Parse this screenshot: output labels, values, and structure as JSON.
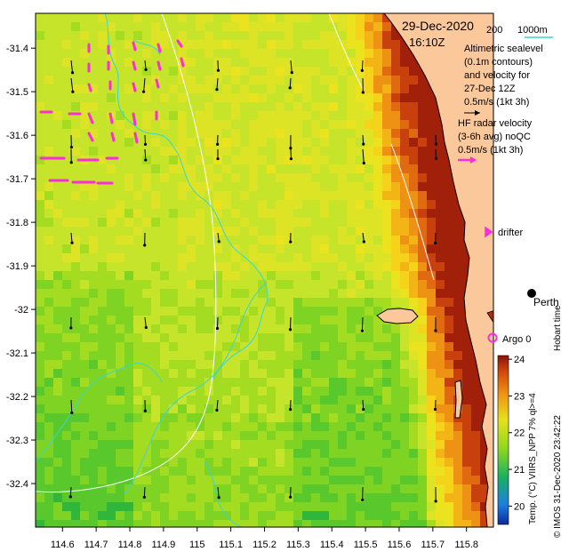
{
  "map": {
    "date": "29-Dec-2020",
    "time": "16:10Z",
    "isobaths": [
      "200",
      "1000m"
    ],
    "altimetry_note": [
      "Altimetric sealevel",
      "(0.1m contours)",
      "and velocity for",
      "27-Dec 12Z",
      "0.5m/s (1kt 3h)"
    ],
    "radar_note": [
      "HF radar velocity",
      "(3-6h avg) noQC",
      "0.5m/s (1kt 3h)"
    ],
    "drifter_label": "drifter",
    "argo_label": "Argo 0",
    "city_label": "Perth",
    "side_credit": "Hobart time",
    "colorbar_title": "Temp. (°C) VIIRS_NPP 7% ql>=4",
    "credit": "© IMOS 31-Dec-2020 23:42:22",
    "colorbar_ticks": [
      "24",
      "23",
      "22",
      "21",
      "20"
    ],
    "lon_ticks": [
      "114.6",
      "114.7",
      "114.8",
      "114.9",
      "115",
      "115.1",
      "115.2",
      "115.3",
      "115.4",
      "115.5",
      "115.6",
      "115.7",
      "115.8"
    ],
    "lat_ticks": [
      "-31.4",
      "-31.5",
      "-31.6",
      "-31.7",
      "-31.8",
      "-31.9",
      "-32",
      "-32.1",
      "-32.2",
      "-32.3",
      "-32.4"
    ],
    "lon_range": [
      114.52,
      115.88
    ],
    "lat_range": [
      -32.5,
      -31.32
    ],
    "colorbar_range": [
      19.5,
      24.1
    ],
    "colors": {
      "land": "#fbc89c",
      "isobath": "#ffffff",
      "sealevel_contour": "#34d7d8",
      "radar_vector": "#ff2bdc",
      "coast": "#000000"
    }
  }
}
